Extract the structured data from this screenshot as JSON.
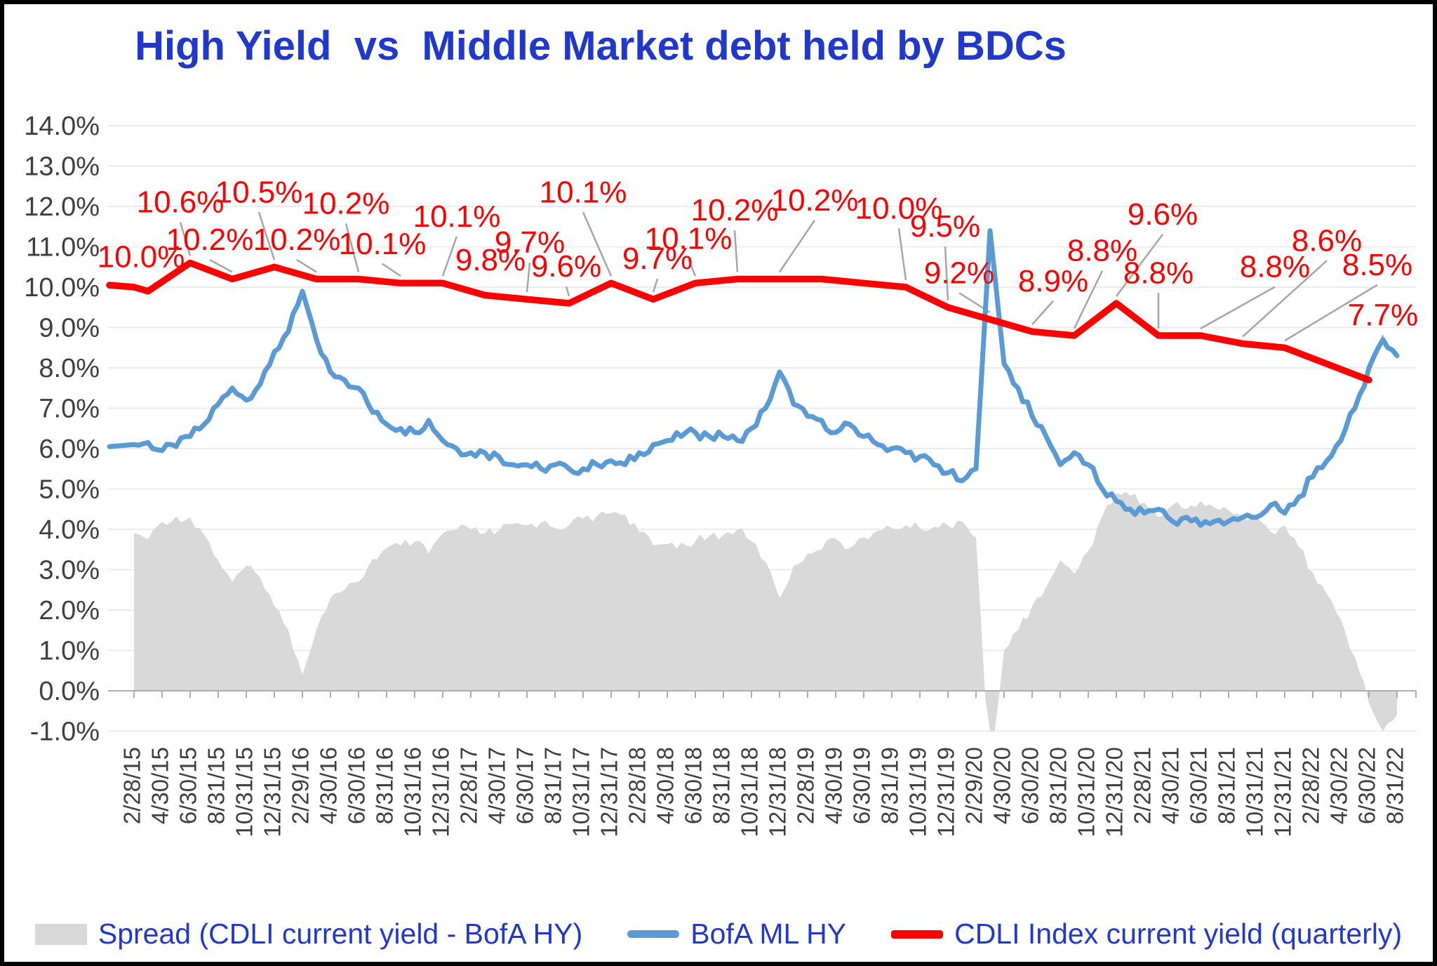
{
  "title": {
    "text": "High Yield  vs  Middle Market debt held by BDCs"
  },
  "colors": {
    "title_blue": "#2038CC",
    "red": "#FF0000",
    "hy_blue": "#5B9BD5",
    "spread_gray": "#D9D9D9",
    "grid": "#ECECEC",
    "axis_line": "#ADADAD",
    "axis_text": "#3F3F3F",
    "leader": "#A6A6A6",
    "label_red": "#FF0000",
    "background": "#FFFFFF",
    "frame": "#000000"
  },
  "legend": {
    "items": [
      {
        "label": "Spread (CDLI current yield - BofA HY)",
        "swatch": "area",
        "color": "#D9D9D9"
      },
      {
        "label": "BofA ML HY",
        "swatch": "line",
        "color": "#5B9BD5"
      },
      {
        "label": "CDLI Index current yield (quarterly)",
        "swatch": "line-red",
        "color": "#FF0000"
      }
    ]
  },
  "chart_data": {
    "type": "line",
    "title": "High Yield  vs  Middle Market debt held by BDCs",
    "ylim": [
      -1.0,
      14.0
    ],
    "grid": true,
    "legend_position": "bottom",
    "y_tick_labels": [
      "14.0%",
      "13.0%",
      "12.0%",
      "11.0%",
      "10.0%",
      "9.0%",
      "8.0%",
      "7.0%",
      "6.0%",
      "5.0%",
      "4.0%",
      "3.0%",
      "2.0%",
      "1.0%",
      "0.0%",
      "-1.0%"
    ],
    "x_tick_labels": [
      "2/28/15",
      "4/30/15",
      "6/30/15",
      "8/31/15",
      "10/31/15",
      "12/31/15",
      "2/29/16",
      "4/30/16",
      "6/30/16",
      "8/31/16",
      "10/31/16",
      "12/31/16",
      "2/28/17",
      "4/30/17",
      "6/30/17",
      "8/31/17",
      "10/31/17",
      "12/31/17",
      "2/28/18",
      "4/30/18",
      "6/30/18",
      "8/31/18",
      "10/31/18",
      "12/31/18",
      "2/28/19",
      "4/30/19",
      "6/30/19",
      "8/31/19",
      "10/31/19",
      "12/31/19",
      "2/29/20",
      "4/30/20",
      "6/30/20",
      "8/31/20",
      "10/31/20",
      "12/31/20",
      "2/28/21",
      "4/30/21",
      "6/30/21",
      "8/31/21",
      "10/31/21",
      "12/31/21",
      "2/28/22",
      "4/30/22",
      "6/30/22",
      "8/31/22"
    ],
    "x_axis_note": "x measured in months since Feb 2015 (tick k = month 2k)",
    "series": [
      {
        "name": "CDLI Index current yield (quarterly)",
        "type": "line",
        "color": "#FF0000",
        "x_months": [
          0,
          1,
          4,
          7,
          10,
          13,
          16,
          19,
          22,
          25,
          28,
          31,
          34,
          37,
          40,
          43,
          46,
          49,
          52,
          55,
          58,
          61,
          64,
          67,
          70,
          73,
          76,
          79,
          82,
          85,
          88
        ],
        "values": [
          10.0,
          9.9,
          10.6,
          10.2,
          10.5,
          10.2,
          10.2,
          10.1,
          10.1,
          9.8,
          9.7,
          9.6,
          10.1,
          9.7,
          10.1,
          10.2,
          10.2,
          10.2,
          10.1,
          10.0,
          9.5,
          9.2,
          8.9,
          8.8,
          9.6,
          8.8,
          8.8,
          8.6,
          8.5,
          8.1,
          7.7
        ],
        "point_labels": [
          "10.0%",
          null,
          "10.6%",
          "10.2%",
          "10.5%",
          "10.2%",
          "10.2%",
          "10.1%",
          "10.1%",
          "9.8%",
          "9.7%",
          "9.6%",
          "10.1%",
          "9.7%",
          "10.1%",
          "10.2%",
          "10.2%",
          null,
          null,
          "10.0%",
          "9.5%",
          "9.2%",
          "8.9%",
          "8.8%",
          "9.6%",
          "8.8%",
          "8.8%",
          "8.6%",
          "8.5%",
          null,
          "7.7%"
        ],
        "label_dx": [
          0.5,
          null,
          -0.7,
          -1.6,
          -1.1,
          -1.4,
          -0.9,
          -1.3,
          1.0,
          0.4,
          0.2,
          -0.2,
          -2.0,
          0.3,
          -0.5,
          -0.2,
          2.5,
          null,
          null,
          -0.5,
          -0.2,
          -2.2,
          1.5,
          2.0,
          3.3,
          0.0,
          5.3,
          6.0,
          6.6,
          null,
          1.0
        ],
        "label_dy": [
          0.5,
          null,
          1.25,
          0.72,
          1.6,
          0.72,
          1.62,
          0.72,
          1.4,
          0.62,
          1.15,
          0.66,
          2.0,
          0.75,
          0.85,
          1.45,
          1.7,
          null,
          null,
          1.7,
          1.75,
          0.9,
          1.0,
          1.85,
          1.95,
          1.3,
          1.45,
          2.3,
          1.8,
          null,
          1.35
        ]
      },
      {
        "name": "BofA ML HY",
        "type": "line",
        "color": "#5B9BD5",
        "x_start_month": 0,
        "x_step_months": 1,
        "values": [
          6.1,
          6.15,
          5.95,
          6.05,
          6.3,
          6.6,
          7.1,
          7.5,
          7.2,
          7.6,
          8.4,
          8.9,
          9.9,
          8.7,
          7.9,
          7.7,
          7.5,
          6.9,
          6.6,
          6.5,
          6.4,
          6.7,
          6.2,
          6.0,
          5.9,
          5.9,
          5.8,
          5.6,
          5.6,
          5.5,
          5.6,
          5.5,
          5.5,
          5.6,
          5.7,
          5.6,
          5.9,
          6.1,
          6.2,
          6.3,
          6.4,
          6.3,
          6.3,
          6.2,
          6.5,
          7.0,
          7.9,
          7.1,
          6.8,
          6.7,
          6.4,
          6.6,
          6.3,
          6.1,
          6.0,
          5.9,
          5.8,
          5.6,
          5.4,
          5.2,
          5.5,
          11.4,
          8.1,
          7.5,
          6.8,
          6.3,
          5.6,
          5.9,
          5.6,
          5.0,
          4.7,
          4.5,
          4.4,
          4.5,
          4.2,
          4.3,
          4.1,
          4.2,
          4.2,
          4.3,
          4.3,
          4.6,
          4.4,
          4.8,
          5.3,
          5.7,
          6.2,
          7.0,
          8.0,
          8.7,
          8.3
        ]
      },
      {
        "name": "Spread (CDLI current yield - BofA HY)",
        "type": "area",
        "color": "#D9D9D9",
        "derivation": "CDLI current yield minus BofA HY, clipped at chart floor of -1.0"
      }
    ]
  }
}
